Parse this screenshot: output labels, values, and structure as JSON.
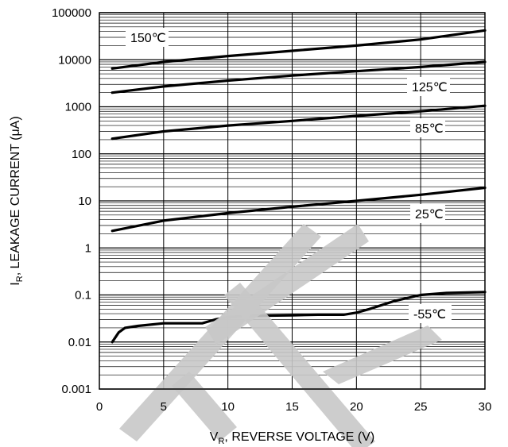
{
  "chart_data": {
    "type": "line",
    "xlabel": "V",
    "xlabel_subscript": "R",
    "xlabel_rest": ", REVERSE VOLTAGE (V)",
    "ylabel": "I",
    "ylabel_subscript": "R",
    "ylabel_rest": ", LEAKAGE CURRENT (μA)",
    "xlim": [
      0,
      30
    ],
    "ylim": [
      0.001,
      100000
    ],
    "yscale": "log",
    "grid": true,
    "x_ticks": [
      "0",
      "5",
      "10",
      "15",
      "20",
      "25",
      "30"
    ],
    "y_ticks": [
      "0.001",
      "0.01",
      "0.1",
      "1",
      "10",
      "100",
      "1000",
      "10000",
      "100000"
    ],
    "series": [
      {
        "name": "150℃",
        "x": [
          1,
          5,
          10,
          15,
          20,
          25,
          30
        ],
        "y": [
          6500,
          9000,
          12000,
          15500,
          20000,
          27000,
          42000
        ]
      },
      {
        "name": "125℃",
        "x": [
          1,
          5,
          10,
          15,
          20,
          25,
          30
        ],
        "y": [
          2000,
          2700,
          3600,
          4600,
          5700,
          7000,
          9000
        ]
      },
      {
        "name": "85℃",
        "x": [
          1,
          5,
          10,
          15,
          20,
          25,
          30
        ],
        "y": [
          210,
          300,
          400,
          500,
          640,
          800,
          1050
        ]
      },
      {
        "name": "25℃",
        "x": [
          1,
          5,
          10,
          15,
          20,
          25,
          30
        ],
        "y": [
          2.3,
          3.8,
          5.5,
          7.5,
          10,
          13.5,
          19
        ]
      },
      {
        "name": "-55℃",
        "x": [
          1,
          1.5,
          2,
          3,
          5,
          7,
          8,
          9,
          10,
          12,
          15,
          17,
          19,
          20,
          21,
          23,
          25,
          27,
          30
        ],
        "y": [
          0.01,
          0.016,
          0.02,
          0.022,
          0.025,
          0.025,
          0.025,
          0.03,
          0.034,
          0.036,
          0.037,
          0.038,
          0.038,
          0.042,
          0.05,
          0.075,
          0.1,
          0.11,
          0.115
        ]
      }
    ]
  }
}
